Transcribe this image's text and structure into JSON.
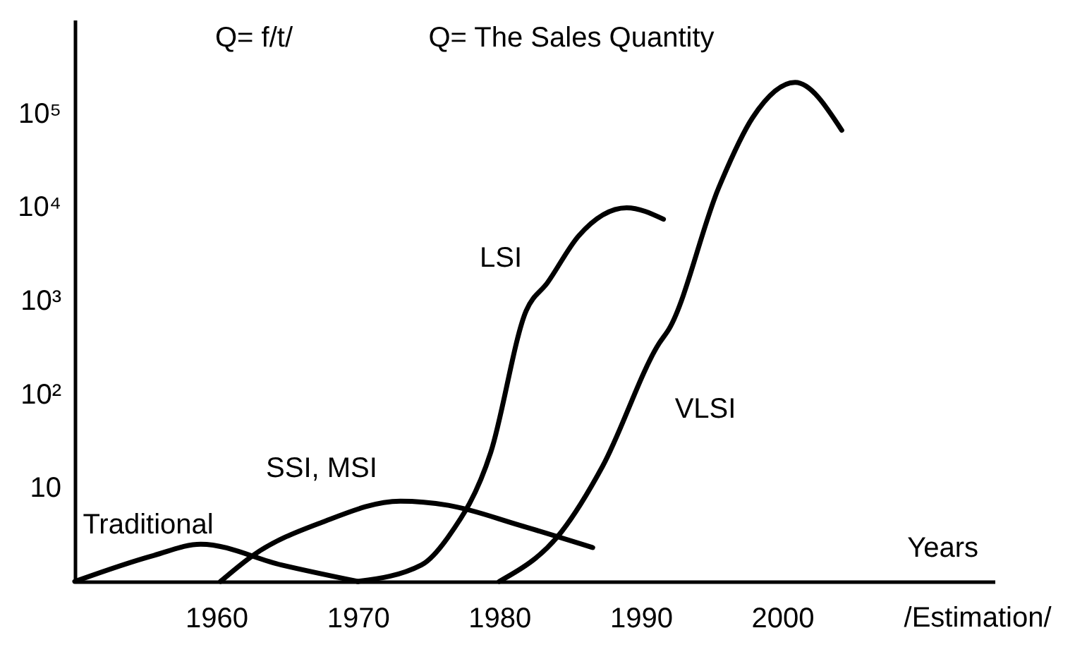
{
  "chart_data": {
    "type": "line",
    "xlabel": "Years",
    "annotations": [
      "Q= f/t/",
      "Q= The Sales Quantity",
      "/Estimation/"
    ],
    "log": "y",
    "xlim": [
      1950,
      2015
    ],
    "xticks": [
      1960,
      1970,
      1980,
      1990,
      2000
    ],
    "ylim": [
      1,
      1000000
    ],
    "yticks": [
      10,
      {
        "value": 100,
        "label": "10²"
      },
      {
        "value": 1000,
        "label": "10³"
      },
      {
        "value": 10000,
        "label": "10⁴"
      },
      {
        "value": 100000,
        "label": "10⁵"
      }
    ],
    "grid": false,
    "marker": "none",
    "line_style": "solid",
    "series": [
      {
        "name": "Traditional",
        "color": "#000000",
        "x": [
          1950,
          1955.6,
          1958.9,
          1964.6,
          1970
        ],
        "values": [
          1,
          1.9,
          2.5,
          1.5,
          1
        ]
      },
      {
        "name": "SSI, MSI",
        "color": "#000000",
        "x": [
          1960.3,
          1962.6,
          1967.5,
          1973,
          1976.4,
          1981.4,
          1986.6
        ],
        "values": [
          1,
          1.9,
          4.3,
          7.2,
          6.5,
          4,
          2.3
        ]
      },
      {
        "name": "LSI",
        "color": "#000000",
        "x": [
          1970,
          1974.5,
          1976.4,
          1979.4,
          1981.9,
          1983.4,
          1985.6,
          1989,
          1991.6
        ],
        "values": [
          1,
          1.5,
          3,
          24,
          780,
          1550,
          4900,
          9800,
          7400
        ]
      },
      {
        "name": "VLSI",
        "color": "#000000",
        "x": [
          1980,
          1984.4,
          1987.3,
          1991.3,
          1992,
          1995.5,
          1997.9,
          2000.9,
          2004.2
        ],
        "values": [
          1,
          3.4,
          17,
          350,
          500,
          16000,
          90000,
          214000,
          66000
        ]
      }
    ]
  }
}
